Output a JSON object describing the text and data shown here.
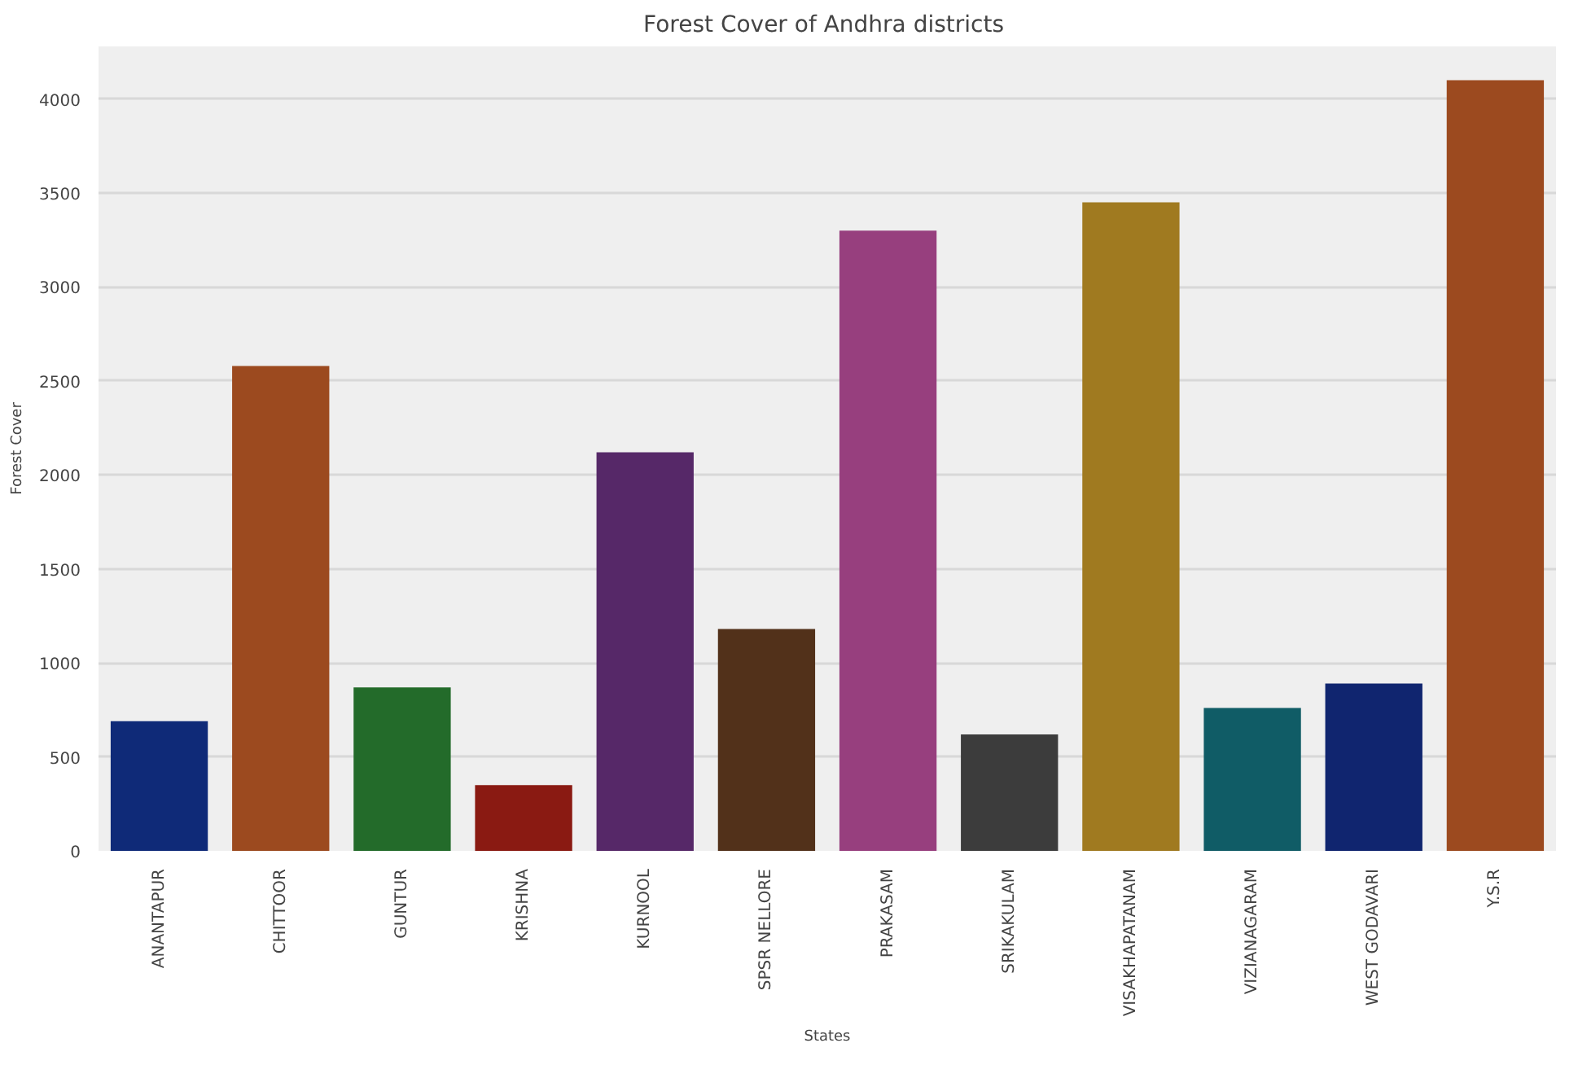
{
  "chart_data": {
    "type": "bar",
    "title": "Forest Cover of  Andhra districts",
    "xlabel": "States",
    "ylabel": "Forest Cover",
    "categories": [
      "ANANTAPUR",
      "CHITTOOR",
      "GUNTUR",
      "KRISHNA",
      "KURNOOL",
      "SPSR NELLORE",
      "PRAKASAM",
      "SRIKAKULAM",
      "VISAKHAPATANAM",
      "VIZIANAGARAM",
      "WEST GODAVARI",
      "Y.S.R"
    ],
    "values": [
      690,
      2580,
      870,
      350,
      2120,
      1180,
      3300,
      620,
      3450,
      760,
      890,
      4100
    ],
    "colors": [
      "#0f2a78",
      "#9c4a1f",
      "#236b2a",
      "#8a1a12",
      "#562868",
      "#52311a",
      "#973f7e",
      "#3c3c3c",
      "#a07a20",
      "#105c66",
      "#10256f",
      "#9c4a1f"
    ],
    "ylim": [
      0,
      4280
    ],
    "yticks": [
      0,
      500,
      1000,
      1500,
      2000,
      2500,
      3000,
      3500,
      4000
    ],
    "grid": "y"
  }
}
